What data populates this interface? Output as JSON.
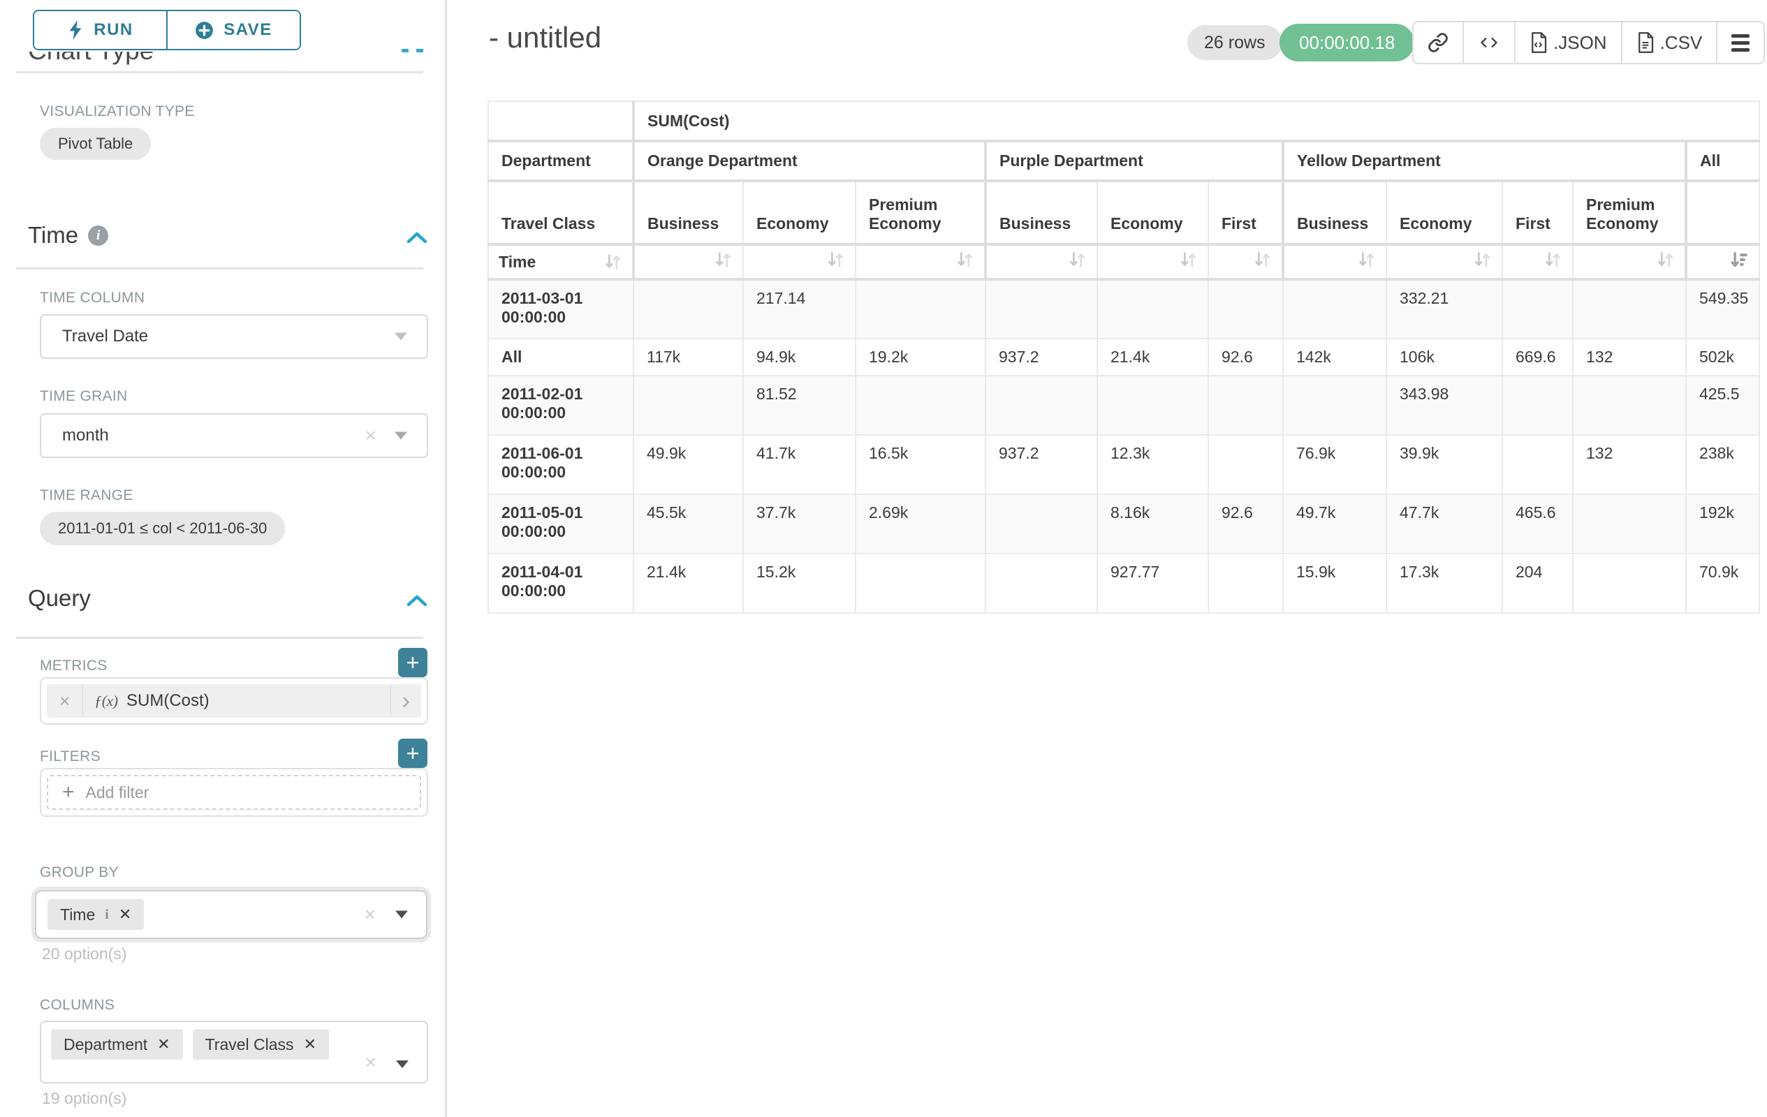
{
  "colors": {
    "accent_teal": "#2e7d96",
    "plus_teal": "#3d8299",
    "timer_green": "#71c194",
    "chevron_blue": "#25a5cb"
  },
  "sidebar": {
    "run_label": "RUN",
    "save_label": "SAVE",
    "chart_type_heading": "Chart Type",
    "viz_type_label": "VISUALIZATION TYPE",
    "viz_type_value": "Pivot Table",
    "time_section": {
      "heading": "Time",
      "time_column_label": "TIME COLUMN",
      "time_column_value": "Travel Date",
      "time_grain_label": "TIME GRAIN",
      "time_grain_value": "month",
      "time_range_label": "TIME RANGE",
      "time_range_value": "2011-01-01 ≤ col < 2011-06-30"
    },
    "query_section": {
      "heading": "Query",
      "metrics_label": "METRICS",
      "metric_fx": "ƒ(x)",
      "metric_value": "SUM(Cost)",
      "filters_label": "FILTERS",
      "add_filter_label": "Add filter",
      "group_by_label": "GROUP BY",
      "group_by_chips": [
        {
          "label": "Time",
          "info": true
        }
      ],
      "group_by_options": "20 option(s)",
      "columns_label": "COLUMNS",
      "columns_chips": [
        {
          "label": "Department"
        },
        {
          "label": "Travel Class"
        }
      ],
      "columns_options": "19 option(s)"
    }
  },
  "header": {
    "title": "- untitled",
    "rows_badge": "26 rows",
    "timer_badge": "00:00:00.18",
    "json_label": ".JSON",
    "csv_label": ".CSV"
  },
  "pivot_table": {
    "metric_header": "SUM(Cost)",
    "labels": {
      "department": "Department",
      "travel_class": "Travel Class",
      "time": "Time"
    },
    "groups": [
      {
        "label": "Orange Department",
        "cols": [
          "Business",
          "Economy",
          "Premium Economy"
        ]
      },
      {
        "label": "Purple Department",
        "cols": [
          "Business",
          "Economy",
          "First"
        ]
      },
      {
        "label": "Yellow Department",
        "cols": [
          "Business",
          "Economy",
          "First",
          "Premium Economy"
        ]
      },
      {
        "label": "All",
        "cols": [
          ""
        ]
      }
    ],
    "rows": [
      {
        "label": "2011-03-01 00:00:00",
        "values": [
          "",
          "217.14",
          "",
          "",
          "",
          "",
          "",
          "332.21",
          "",
          "",
          "549.35"
        ]
      },
      {
        "label": "All",
        "values": [
          "117k",
          "94.9k",
          "19.2k",
          "937.2",
          "21.4k",
          "92.6",
          "142k",
          "106k",
          "669.6",
          "132",
          "502k"
        ]
      },
      {
        "label": "2011-02-01 00:00:00",
        "values": [
          "",
          "81.52",
          "",
          "",
          "",
          "",
          "",
          "343.98",
          "",
          "",
          "425.5"
        ]
      },
      {
        "label": "2011-06-01 00:00:00",
        "values": [
          "49.9k",
          "41.7k",
          "16.5k",
          "937.2",
          "12.3k",
          "",
          "76.9k",
          "39.9k",
          "",
          "132",
          "238k"
        ]
      },
      {
        "label": "2011-05-01 00:00:00",
        "values": [
          "45.5k",
          "37.7k",
          "2.69k",
          "",
          "8.16k",
          "92.6",
          "49.7k",
          "47.7k",
          "465.6",
          "",
          "192k"
        ]
      },
      {
        "label": "2011-04-01 00:00:00",
        "values": [
          "21.4k",
          "15.2k",
          "",
          "",
          "927.77",
          "",
          "15.9k",
          "17.3k",
          "204",
          "",
          "70.9k"
        ]
      }
    ],
    "sort": {
      "active_column": "All",
      "active_direction": "desc"
    }
  }
}
